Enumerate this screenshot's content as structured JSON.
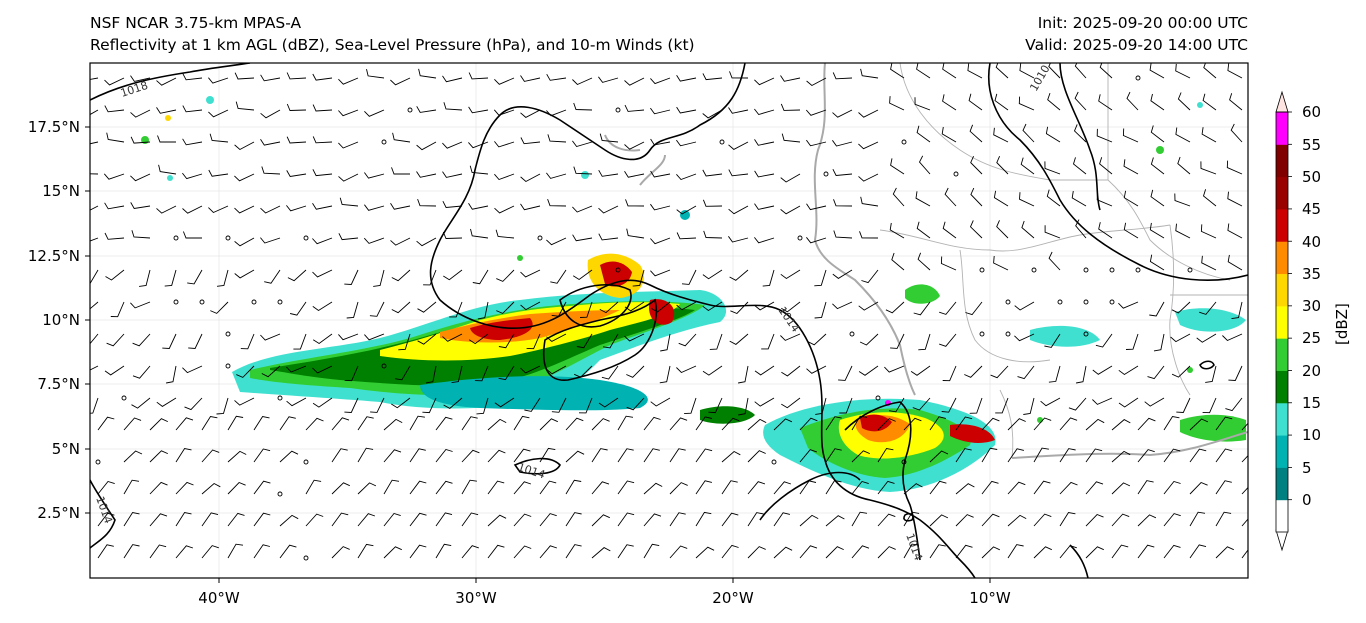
{
  "header": {
    "title_line1": "NSF NCAR 3.75-km MPAS-A",
    "title_line2": "Reflectivity at 1 km AGL (dBZ), Sea-Level Pressure (hPa), and 10-m Winds (kt)",
    "init": "Init: 2025-09-20 00:00 UTC",
    "valid": "Valid: 2025-09-20 14:00 UTC"
  },
  "axes": {
    "lat_labels": [
      "17.5°N",
      "15°N",
      "12.5°N",
      "10°N",
      "7.5°N",
      "5°N",
      "2.5°N"
    ],
    "lon_labels": [
      "40°W",
      "30°W",
      "20°W",
      "10°W"
    ]
  },
  "isobars": {
    "labels": [
      "1018",
      "1014",
      "1014",
      "1014",
      "1014",
      "1010"
    ]
  },
  "colorbar": {
    "unit": "[dBZ]",
    "ticks": [
      "0",
      "5",
      "10",
      "15",
      "20",
      "25",
      "30",
      "35",
      "40",
      "45",
      "50",
      "55",
      "60"
    ],
    "colors": [
      "#008080",
      "#00b2b2",
      "#40e0d0",
      "#008000",
      "#32cd32",
      "#ffff00",
      "#ffd700",
      "#ff8c00",
      "#cc0000",
      "#990000",
      "#800000",
      "#ff00ff",
      "#ffe4e1"
    ]
  },
  "colors": {
    "coast": "#a9a9a9",
    "isobar": "#000000",
    "border": "#b3b3b3"
  }
}
